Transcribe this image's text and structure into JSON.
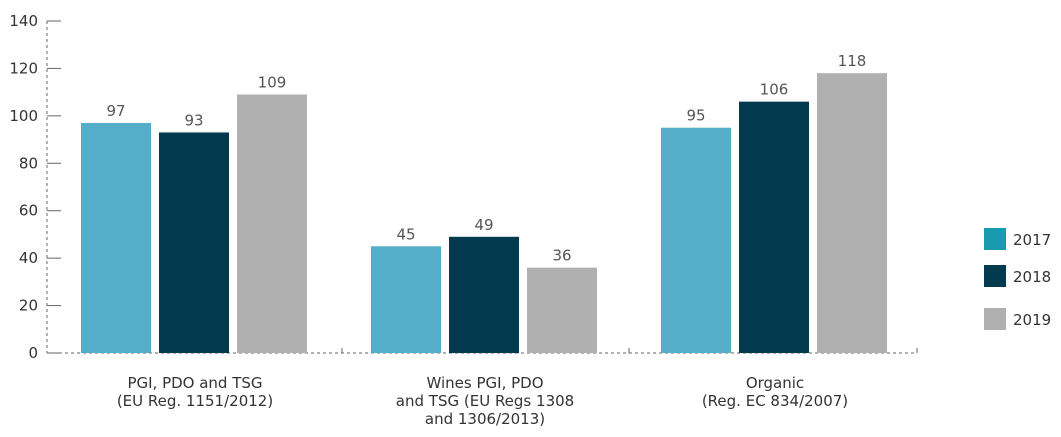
{
  "chart_data": {
    "type": "bar",
    "categories": [
      [
        "PGI, PDO and TSG",
        "(EU Reg. 1151/2012)"
      ],
      [
        "Wines PGI, PDO",
        "and TSG (EU Regs 1308",
        "and 1306/2013)"
      ],
      [
        "Organic",
        "(Reg. EC 834/2007)"
      ]
    ],
    "series": [
      {
        "name": "2017",
        "values": [
          97,
          45,
          95
        ],
        "color": "#55aec9",
        "legend_color": "#1a9aaf"
      },
      {
        "name": "2018",
        "values": [
          93,
          49,
          106
        ],
        "color": "#043a4f",
        "legend_color": "#043a4f"
      },
      {
        "name": "2019",
        "values": [
          109,
          36,
          118
        ],
        "color": "#b0b0b0",
        "legend_color": "#b0b0b0"
      }
    ],
    "data_labels": [
      [
        "97",
        "45",
        "95"
      ],
      [
        "93",
        "49",
        "106"
      ],
      [
        "109",
        "36",
        "118"
      ]
    ],
    "y_ticks": [
      "0",
      "20",
      "40",
      "60",
      "80",
      "100",
      "120",
      "140"
    ],
    "ylim": [
      0,
      140
    ],
    "title": "",
    "xlabel": "",
    "ylabel": "",
    "legend_position": "right",
    "grid": false
  }
}
